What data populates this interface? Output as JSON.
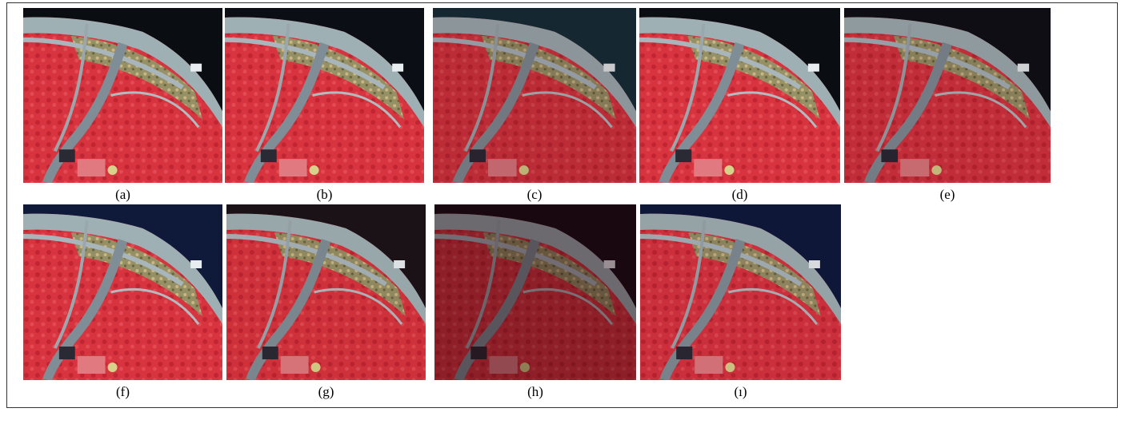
{
  "panels": [
    {
      "label": "(a)"
    },
    {
      "label": "(b)"
    },
    {
      "label": "(c)"
    },
    {
      "label": "(d)"
    },
    {
      "label": "(e)"
    },
    {
      "label": "(f)"
    },
    {
      "label": "(g)"
    },
    {
      "label": "(h)"
    },
    {
      "label": "(ı)"
    }
  ]
}
